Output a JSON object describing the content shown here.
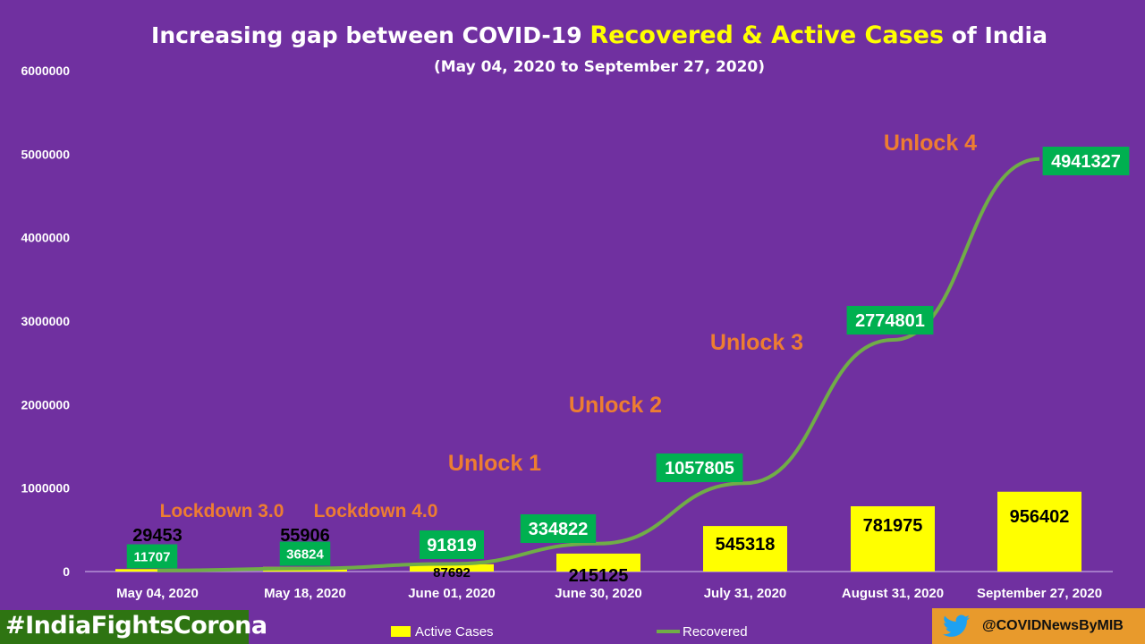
{
  "chart_data": {
    "type": "bar",
    "title_part1": "Increasing gap between COVID-19 ",
    "title_highlight": "Recovered & Active Cases",
    "title_part2": " of India",
    "subtitle": "(May 04, 2020  to September 27, 2020)",
    "categories": [
      "May 04, 2020",
      "May 18, 2020",
      "June 01, 2020",
      "June 30, 2020",
      "July 31, 2020",
      "August 31, 2020",
      "September 27, 2020"
    ],
    "series": [
      {
        "name": "Active Cases",
        "type": "bar",
        "color": "#FFFF00",
        "values": [
          29453,
          55906,
          87692,
          215125,
          545318,
          781975,
          956402
        ]
      },
      {
        "name": "Recovered",
        "type": "line",
        "color": "#70AD47",
        "values": [
          11707,
          36824,
          91819,
          334822,
          1057805,
          2774801,
          4941327
        ]
      }
    ],
    "yticks": [
      "0",
      "1000000",
      "2000000",
      "3000000",
      "4000000",
      "5000000",
      "6000000"
    ],
    "ylim": [
      0,
      6000000
    ],
    "annotations": [
      "Lockdown 3.0",
      "Lockdown 4.0",
      "Unlock 1",
      "Unlock 2",
      "Unlock 3",
      "Unlock 4"
    ],
    "legend": "bottom",
    "grid": false
  },
  "footer": {
    "hashtag": "#IndiaFightsCorona",
    "handle": "@COVIDNewsByMIB",
    "handle_icon": "twitter-bird-icon"
  }
}
